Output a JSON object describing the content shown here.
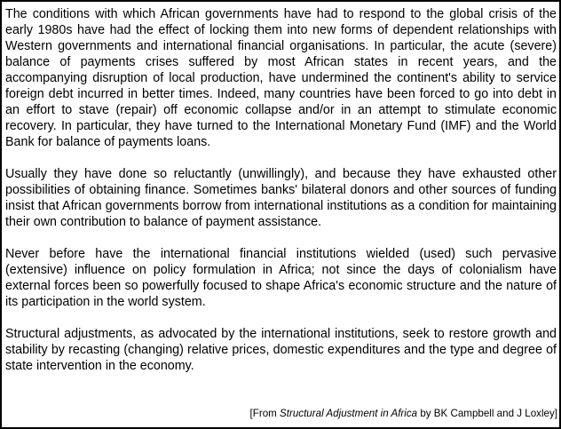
{
  "passage": {
    "paragraphs": [
      "The conditions with which African governments have had to respond to the global crisis of the early 1980s have had the effect of locking them into new forms of dependent relationships with Western governments and international financial organisations. In particular, the acute (severe) balance of payments crises suffered by most African states in recent years, and the accompanying disruption of local production, have undermined the continent's ability to service foreign debt incurred in better times. Indeed, many countries have been forced to go into debt in an effort to stave (repair) off economic collapse and/or in an attempt to stimulate economic recovery. In particular, they have turned to the International Monetary Fund (IMF) and the World Bank for balance of payments loans.",
      "Usually they have done so reluctantly (unwillingly), and because they have exhausted other possibilities of obtaining finance. Sometimes banks' bilateral donors and other sources of funding insist that African governments borrow from international institutions as a condition for maintaining their own contribution to balance of payment assistance.",
      "Never before have the international financial institutions wielded (used) such pervasive (extensive) influence on policy formulation in Africa; not since the days of colonialism have external forces been so powerfully focused to shape Africa's economic structure and the nature of its participation in the world system.",
      "Structural adjustments, as advocated by the international institutions, seek to restore growth and stability by recasting (changing) relative prices, domestic expenditures and the type and degree of state intervention in the economy."
    ]
  },
  "source": {
    "prefix": "[From ",
    "title": "Structural Adjustment in Africa",
    "suffix": " by BK Campbell and J Loxley]"
  }
}
